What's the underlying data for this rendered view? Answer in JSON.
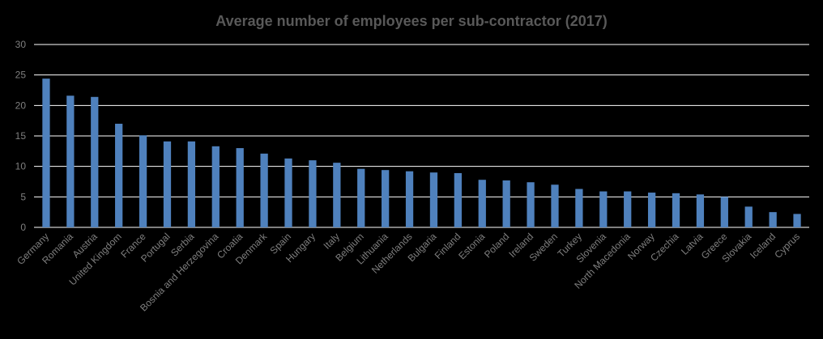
{
  "chart_data": {
    "type": "bar",
    "title": "Average number of employees per sub-contractor (2017)",
    "xlabel": "",
    "ylabel": "",
    "ylim": [
      0,
      30
    ],
    "yticks": [
      0,
      5,
      10,
      15,
      20,
      25,
      30
    ],
    "grid": true,
    "legend": "none",
    "bar_color": "#4f81bd",
    "categories": [
      "Germany",
      "Romania",
      "Austria",
      "United Kingdom",
      "France",
      "Portugal",
      "Serbia",
      "Bosnia and Herzegovina",
      "Croatia",
      "Denmark",
      "Spain",
      "Hungary",
      "Italy",
      "Belgium",
      "Lithuania",
      "Netherlands",
      "Bulgaria",
      "Finland",
      "Estonia",
      "Poland",
      "Ireland",
      "Sweden",
      "Turkey",
      "Slovenia",
      "North Macedonia",
      "Norway",
      "Czechia",
      "Latvia",
      "Greece",
      "Slovakia",
      "Iceland",
      "Cyprus"
    ],
    "values": [
      24.4,
      21.6,
      21.4,
      17.0,
      15.1,
      14.1,
      14.1,
      13.3,
      13.0,
      12.1,
      11.3,
      11.0,
      10.6,
      9.6,
      9.4,
      9.2,
      9.0,
      8.9,
      7.8,
      7.7,
      7.4,
      7.0,
      6.3,
      5.9,
      5.9,
      5.7,
      5.6,
      5.4,
      5.0,
      3.4,
      2.5,
      2.2
    ]
  }
}
